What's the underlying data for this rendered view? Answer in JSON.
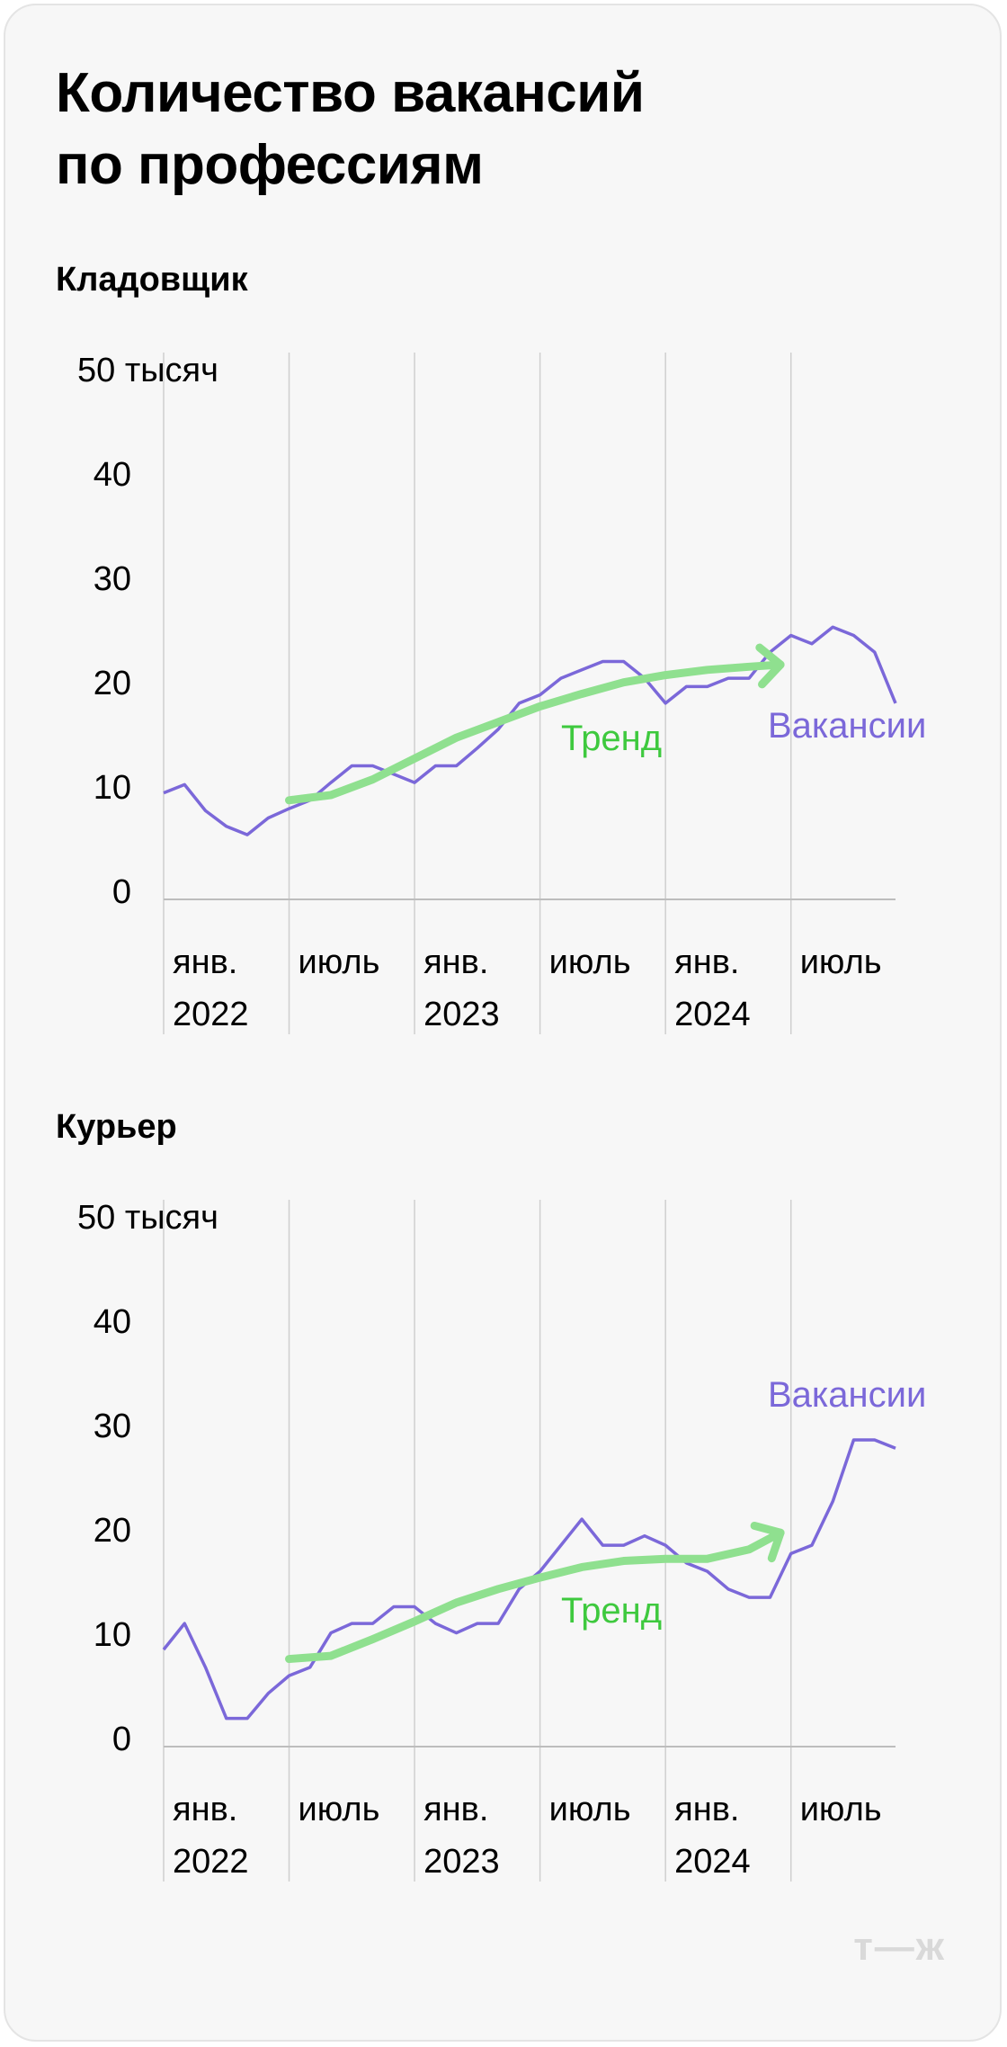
{
  "title_line1": "Количество вакансий",
  "title_line2": "по профессиям",
  "logo": "т—ж",
  "colors": {
    "vacancies": "#7b68d9",
    "trend": "#8fe08f",
    "trend_label": "#3ec93e",
    "grid": "#cfcfcf",
    "axis": "#bdbdbd",
    "text": "#000000"
  },
  "chart_data": [
    {
      "type": "line",
      "title": "Кладовщик",
      "y_unit_label": "50 тысяч",
      "yticks": [
        0,
        10,
        20,
        30,
        40,
        50
      ],
      "ylim": [
        0,
        50
      ],
      "xlim": [
        0,
        35
      ],
      "x_ticks": [
        {
          "x": 0,
          "line1": "янв.",
          "line2": "2022"
        },
        {
          "x": 6,
          "line1": "июль",
          "line2": ""
        },
        {
          "x": 12,
          "line1": "янв.",
          "line2": "2023"
        },
        {
          "x": 18,
          "line1": "июль",
          "line2": ""
        },
        {
          "x": 24,
          "line1": "янв.",
          "line2": "2024"
        },
        {
          "x": 30,
          "line1": "июль",
          "line2": ""
        }
      ],
      "series": [
        {
          "name": "Вакансии",
          "role": "vacancies",
          "x": [
            0,
            1,
            2,
            3,
            4,
            5,
            6,
            7,
            8,
            9,
            10,
            11,
            12,
            13,
            14,
            15,
            16,
            17,
            18,
            19,
            20,
            21,
            22,
            23,
            24,
            25,
            26,
            27,
            28,
            29,
            30,
            31,
            32,
            33,
            34,
            35
          ],
          "values": [
            10.2,
            11,
            8.5,
            7,
            6.2,
            7.8,
            8.7,
            9.5,
            11.2,
            12.8,
            12.8,
            12,
            11.2,
            12.8,
            12.8,
            14.5,
            16.3,
            18.8,
            19.6,
            21.2,
            22,
            22.8,
            22.8,
            21.2,
            18.8,
            20.4,
            20.4,
            21.2,
            21.2,
            23.7,
            25.3,
            24.5,
            26.1,
            25.3,
            23.7,
            18.8
          ]
        },
        {
          "name": "Тренд",
          "role": "trend",
          "x": [
            6,
            8,
            10,
            12,
            14,
            16,
            18,
            20,
            22,
            24,
            26,
            28,
            29.5
          ],
          "values": [
            9.5,
            10,
            11.5,
            13.5,
            15.5,
            17,
            18.5,
            19.7,
            20.8,
            21.5,
            22,
            22.3,
            22.5
          ]
        }
      ]
    },
    {
      "type": "line",
      "title": "Курьер",
      "y_unit_label": "50 тысяч",
      "yticks": [
        0,
        10,
        20,
        30,
        40,
        50
      ],
      "ylim": [
        0,
        50
      ],
      "xlim": [
        0,
        35
      ],
      "x_ticks": [
        {
          "x": 0,
          "line1": "янв.",
          "line2": "2022"
        },
        {
          "x": 6,
          "line1": "июль",
          "line2": ""
        },
        {
          "x": 12,
          "line1": "янв.",
          "line2": "2023"
        },
        {
          "x": 18,
          "line1": "июль",
          "line2": ""
        },
        {
          "x": 24,
          "line1": "янв.",
          "line2": "2024"
        },
        {
          "x": 30,
          "line1": "июль",
          "line2": ""
        }
      ],
      "series": [
        {
          "name": "Вакансии",
          "role": "vacancies",
          "x": [
            0,
            1,
            2,
            3,
            4,
            5,
            6,
            7,
            8,
            9,
            10,
            11,
            12,
            13,
            14,
            15,
            16,
            17,
            18,
            19,
            20,
            21,
            22,
            23,
            24,
            25,
            26,
            27,
            28,
            29,
            30,
            31,
            32,
            33,
            34,
            35
          ],
          "values": [
            9.3,
            11.8,
            7.6,
            2.7,
            2.7,
            5.1,
            6.8,
            7.6,
            10.9,
            11.8,
            11.8,
            13.4,
            13.4,
            11.8,
            10.9,
            11.8,
            11.8,
            15.1,
            16.8,
            19.3,
            21.8,
            19.3,
            19.3,
            20.2,
            19.3,
            17.6,
            16.8,
            15.1,
            14.3,
            14.3,
            18.5,
            19.3,
            23.5,
            29.4,
            29.4,
            28.6
          ]
        },
        {
          "name": "Тренд",
          "role": "trend",
          "x": [
            6,
            8,
            10,
            12,
            14,
            16,
            18,
            20,
            22,
            24,
            26,
            28,
            29.5
          ],
          "values": [
            8.4,
            8.7,
            10.3,
            12,
            13.8,
            15.1,
            16.2,
            17.2,
            17.8,
            18,
            18,
            18.9,
            20.5
          ]
        }
      ]
    }
  ]
}
